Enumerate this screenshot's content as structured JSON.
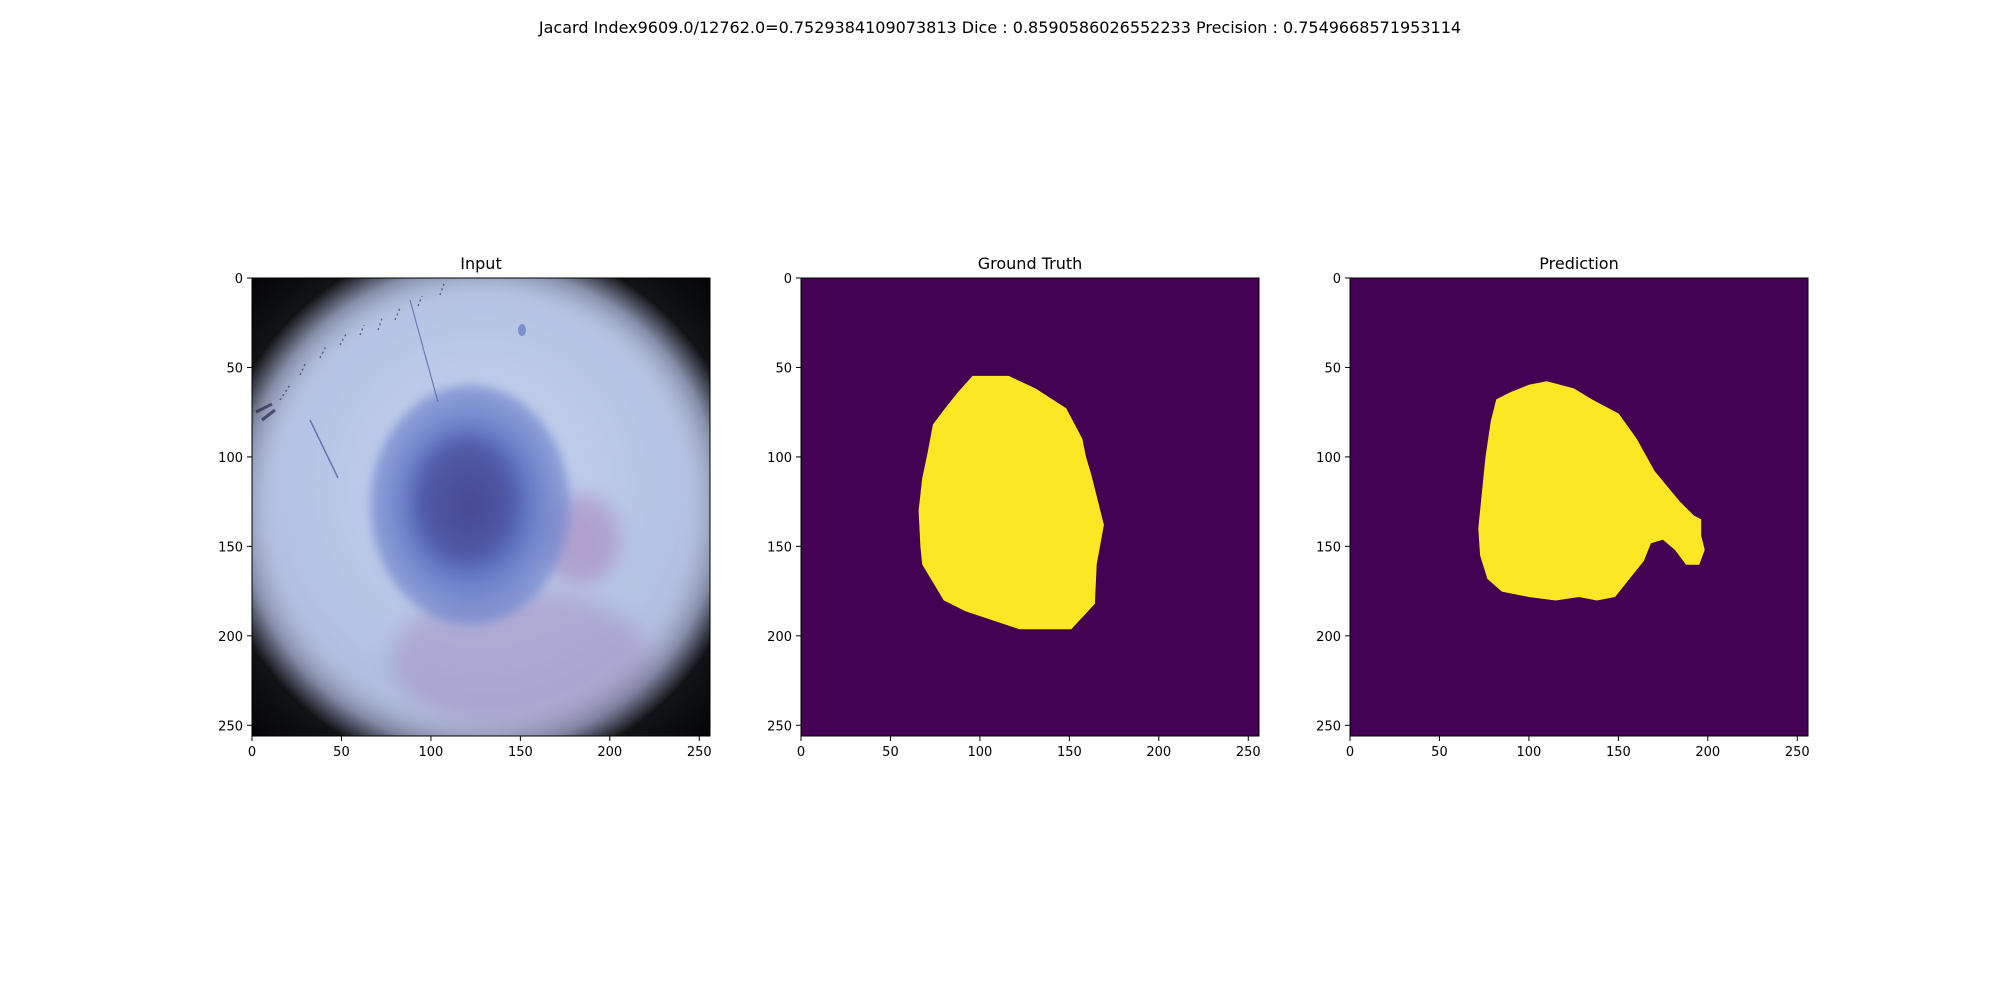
{
  "figure": {
    "suptitle": "Jacard Index9609.0/12762.0=0.7529384109073813 Dice : 0.8590586026552233 Precision : 0.7549668571953114"
  },
  "colors": {
    "background": "#440154",
    "foreground": "#fde725",
    "axis": "#000000",
    "input_skin": "#bccbe6",
    "input_lesion": "#5a73c4",
    "input_lesion_core": "#4b4a97",
    "input_vignette": "#000000"
  },
  "chart_data": [
    {
      "type": "image",
      "name": "input",
      "title": "Input",
      "content": "dermoscopy-image",
      "xlim": [
        0,
        256
      ],
      "ylim": [
        256,
        0
      ],
      "xticks": [
        0,
        50,
        100,
        150,
        200,
        250
      ],
      "yticks": [
        0,
        50,
        100,
        150,
        200,
        250
      ],
      "xtick_labels": [
        "0",
        "50",
        "100",
        "150",
        "200",
        "250"
      ],
      "ytick_labels": [
        "0",
        "50",
        "100",
        "150",
        "200",
        "250"
      ]
    },
    {
      "type": "heatmap",
      "name": "ground-truth",
      "title": "Ground Truth",
      "content": "binary-mask",
      "xlim": [
        0,
        256
      ],
      "ylim": [
        256,
        0
      ],
      "xticks": [
        0,
        50,
        100,
        150,
        200,
        250
      ],
      "yticks": [
        0,
        50,
        100,
        150,
        200,
        250
      ],
      "xtick_labels": [
        "0",
        "50",
        "100",
        "150",
        "200",
        "250"
      ],
      "ytick_labels": [
        "0",
        "50",
        "100",
        "150",
        "200",
        "250"
      ],
      "mask_polygon": [
        [
          96,
          55
        ],
        [
          116,
          55
        ],
        [
          131,
          62
        ],
        [
          148,
          73
        ],
        [
          157,
          90
        ],
        [
          159,
          100
        ],
        [
          162,
          110
        ],
        [
          169,
          138
        ],
        [
          165,
          160
        ],
        [
          164,
          182
        ],
        [
          151,
          196
        ],
        [
          122,
          196
        ],
        [
          110,
          192
        ],
        [
          92,
          186
        ],
        [
          80,
          180
        ],
        [
          74,
          170
        ],
        [
          68,
          160
        ],
        [
          67,
          150
        ],
        [
          66,
          130
        ],
        [
          68,
          112
        ],
        [
          71,
          98
        ],
        [
          74,
          82
        ],
        [
          80,
          74
        ],
        [
          88,
          64
        ]
      ]
    },
    {
      "type": "heatmap",
      "name": "prediction",
      "title": "Prediction",
      "content": "binary-mask",
      "xlim": [
        0,
        256
      ],
      "ylim": [
        256,
        0
      ],
      "xticks": [
        0,
        50,
        100,
        150,
        200,
        250
      ],
      "yticks": [
        0,
        50,
        100,
        150,
        200,
        250
      ],
      "xtick_labels": [
        "0",
        "50",
        "100",
        "150",
        "200",
        "250"
      ],
      "ytick_labels": [
        "0",
        "50",
        "100",
        "150",
        "200",
        "250"
      ],
      "mask_polygon": [
        [
          100,
          60
        ],
        [
          110,
          58
        ],
        [
          125,
          62
        ],
        [
          135,
          68
        ],
        [
          150,
          76
        ],
        [
          160,
          90
        ],
        [
          170,
          108
        ],
        [
          184,
          125
        ],
        [
          192,
          133
        ],
        [
          196,
          135
        ],
        [
          196,
          144
        ],
        [
          198,
          152
        ],
        [
          195,
          160
        ],
        [
          188,
          160
        ],
        [
          182,
          152
        ],
        [
          175,
          146
        ],
        [
          168,
          148
        ],
        [
          164,
          158
        ],
        [
          156,
          168
        ],
        [
          148,
          178
        ],
        [
          138,
          180
        ],
        [
          128,
          178
        ],
        [
          115,
          180
        ],
        [
          100,
          178
        ],
        [
          85,
          175
        ],
        [
          77,
          168
        ],
        [
          73,
          155
        ],
        [
          72,
          140
        ],
        [
          74,
          120
        ],
        [
          76,
          100
        ],
        [
          79,
          80
        ],
        [
          82,
          68
        ],
        [
          90,
          64
        ]
      ]
    }
  ]
}
